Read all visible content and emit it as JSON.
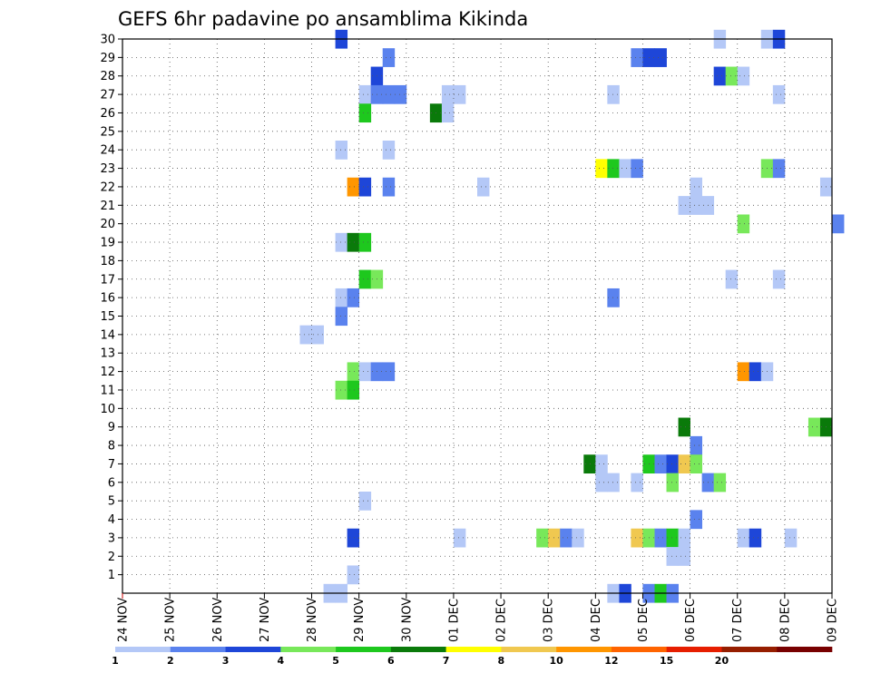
{
  "chart_data": {
    "type": "heatmap",
    "title": "GEFS 6hr padavine po ansamblima Kikinda",
    "y_ticks": [
      "1",
      "2",
      "3",
      "4",
      "5",
      "6",
      "7",
      "8",
      "9",
      "10",
      "11",
      "12",
      "13",
      "14",
      "15",
      "16",
      "17",
      "18",
      "19",
      "20",
      "21",
      "22",
      "23",
      "24",
      "25",
      "26",
      "27",
      "28",
      "29",
      "30"
    ],
    "y_range": [
      0,
      30
    ],
    "x_ticks": [
      "24 NOV",
      "25 NOV",
      "26 NOV",
      "27 NOV",
      "28 NOV",
      "29 NOV",
      "30 NOV",
      "01 DEC",
      "02 DEC",
      "03 DEC",
      "04 DEC",
      "05 DEC",
      "06 DEC",
      "07 DEC",
      "08 DEC",
      "09 DEC"
    ],
    "x_range_days": [
      0,
      15
    ],
    "steps_per_day": 4,
    "grid": true,
    "legend_levels": [
      "1",
      "2",
      "3",
      "4",
      "5",
      "6",
      "7",
      "8",
      "10",
      "12",
      "15",
      "20"
    ],
    "legend_colors": [
      "#b4c8f7",
      "#5a82ee",
      "#1e46d8",
      "#78e85a",
      "#1ec81e",
      "#0a7a0a",
      "#ffff00",
      "#f0c850",
      "#ff9600",
      "#ff6400",
      "#e61e00",
      "#961e00",
      "#780000"
    ],
    "cells": [
      {
        "m": 30,
        "t": 18,
        "c": 2
      },
      {
        "m": 30,
        "t": 50,
        "c": 0
      },
      {
        "m": 30,
        "t": 54,
        "c": 0
      },
      {
        "m": 30,
        "t": 55,
        "c": 2
      },
      {
        "m": 29,
        "t": 22,
        "c": 1
      },
      {
        "m": 29,
        "t": 43,
        "c": 1
      },
      {
        "m": 29,
        "t": 44,
        "c": 2
      },
      {
        "m": 29,
        "t": 45,
        "c": 2
      },
      {
        "m": 28,
        "t": 21,
        "c": 2
      },
      {
        "m": 28,
        "t": 50,
        "c": 2
      },
      {
        "m": 28,
        "t": 51,
        "c": 3
      },
      {
        "m": 28,
        "t": 52,
        "c": 0
      },
      {
        "m": 27,
        "t": 20,
        "c": 0
      },
      {
        "m": 27,
        "t": 21,
        "c": 1
      },
      {
        "m": 27,
        "t": 22,
        "c": 1
      },
      {
        "m": 27,
        "t": 23,
        "c": 1
      },
      {
        "m": 27,
        "t": 27,
        "c": 0
      },
      {
        "m": 27,
        "t": 28,
        "c": 0
      },
      {
        "m": 27,
        "t": 41,
        "c": 0
      },
      {
        "m": 27,
        "t": 55,
        "c": 0
      },
      {
        "m": 26,
        "t": 20,
        "c": 4
      },
      {
        "m": 26,
        "t": 26,
        "c": 5
      },
      {
        "m": 26,
        "t": 27,
        "c": 0
      },
      {
        "m": 24,
        "t": 18,
        "c": 0
      },
      {
        "m": 24,
        "t": 22,
        "c": 0
      },
      {
        "m": 23,
        "t": 40,
        "c": 6
      },
      {
        "m": 23,
        "t": 41,
        "c": 4
      },
      {
        "m": 23,
        "t": 42,
        "c": 0
      },
      {
        "m": 23,
        "t": 43,
        "c": 1
      },
      {
        "m": 23,
        "t": 54,
        "c": 3
      },
      {
        "m": 23,
        "t": 55,
        "c": 1
      },
      {
        "m": 22,
        "t": 19,
        "c": 8
      },
      {
        "m": 22,
        "t": 20,
        "c": 2
      },
      {
        "m": 22,
        "t": 22,
        "c": 1
      },
      {
        "m": 22,
        "t": 30,
        "c": 0
      },
      {
        "m": 22,
        "t": 48,
        "c": 0
      },
      {
        "m": 22,
        "t": 59,
        "c": 0
      },
      {
        "m": 21,
        "t": 47,
        "c": 0
      },
      {
        "m": 21,
        "t": 48,
        "c": 0
      },
      {
        "m": 21,
        "t": 49,
        "c": 0
      },
      {
        "m": 20,
        "t": 52,
        "c": 3
      },
      {
        "m": 20,
        "t": 60,
        "c": 1
      },
      {
        "m": 19,
        "t": 18,
        "c": 0
      },
      {
        "m": 19,
        "t": 19,
        "c": 5
      },
      {
        "m": 19,
        "t": 20,
        "c": 4
      },
      {
        "m": 17,
        "t": 20,
        "c": 4
      },
      {
        "m": 17,
        "t": 21,
        "c": 3
      },
      {
        "m": 17,
        "t": 51,
        "c": 0
      },
      {
        "m": 17,
        "t": 55,
        "c": 0
      },
      {
        "m": 16,
        "t": 18,
        "c": 0
      },
      {
        "m": 16,
        "t": 19,
        "c": 1
      },
      {
        "m": 16,
        "t": 41,
        "c": 1
      },
      {
        "m": 15,
        "t": 18,
        "c": 1
      },
      {
        "m": 14,
        "t": 15,
        "c": 0
      },
      {
        "m": 14,
        "t": 16,
        "c": 0
      },
      {
        "m": 12,
        "t": 19,
        "c": 3
      },
      {
        "m": 12,
        "t": 20,
        "c": 0
      },
      {
        "m": 12,
        "t": 21,
        "c": 1
      },
      {
        "m": 12,
        "t": 22,
        "c": 1
      },
      {
        "m": 12,
        "t": 52,
        "c": 8
      },
      {
        "m": 12,
        "t": 53,
        "c": 2
      },
      {
        "m": 12,
        "t": 54,
        "c": 0
      },
      {
        "m": 11,
        "t": 18,
        "c": 3
      },
      {
        "m": 11,
        "t": 19,
        "c": 4
      },
      {
        "m": 9,
        "t": 47,
        "c": 5
      },
      {
        "m": 9,
        "t": 58,
        "c": 3
      },
      {
        "m": 9,
        "t": 59,
        "c": 5
      },
      {
        "m": 8,
        "t": 48,
        "c": 1
      },
      {
        "m": 7,
        "t": 39,
        "c": 5
      },
      {
        "m": 7,
        "t": 40,
        "c": 0
      },
      {
        "m": 7,
        "t": 44,
        "c": 4
      },
      {
        "m": 7,
        "t": 45,
        "c": 1
      },
      {
        "m": 7,
        "t": 46,
        "c": 2
      },
      {
        "m": 7,
        "t": 47,
        "c": 7
      },
      {
        "m": 7,
        "t": 48,
        "c": 3
      },
      {
        "m": 6,
        "t": 40,
        "c": 0
      },
      {
        "m": 6,
        "t": 41,
        "c": 0
      },
      {
        "m": 6,
        "t": 43,
        "c": 0
      },
      {
        "m": 6,
        "t": 46,
        "c": 3
      },
      {
        "m": 6,
        "t": 49,
        "c": 1
      },
      {
        "m": 6,
        "t": 50,
        "c": 3
      },
      {
        "m": 5,
        "t": 20,
        "c": 0
      },
      {
        "m": 4,
        "t": 48,
        "c": 1
      },
      {
        "m": 3,
        "t": 19,
        "c": 2
      },
      {
        "m": 3,
        "t": 28,
        "c": 0
      },
      {
        "m": 3,
        "t": 35,
        "c": 3
      },
      {
        "m": 3,
        "t": 36,
        "c": 7
      },
      {
        "m": 3,
        "t": 37,
        "c": 1
      },
      {
        "m": 3,
        "t": 38,
        "c": 0
      },
      {
        "m": 3,
        "t": 43,
        "c": 7
      },
      {
        "m": 3,
        "t": 44,
        "c": 3
      },
      {
        "m": 3,
        "t": 45,
        "c": 1
      },
      {
        "m": 3,
        "t": 46,
        "c": 4
      },
      {
        "m": 3,
        "t": 47,
        "c": 0
      },
      {
        "m": 3,
        "t": 52,
        "c": 0
      },
      {
        "m": 3,
        "t": 53,
        "c": 2
      },
      {
        "m": 3,
        "t": 56,
        "c": 0
      },
      {
        "m": 2,
        "t": 46,
        "c": 0
      },
      {
        "m": 2,
        "t": 47,
        "c": 0
      },
      {
        "m": 1,
        "t": 19,
        "c": 0
      },
      {
        "m": 0,
        "t": 17,
        "c": 0
      },
      {
        "m": 0,
        "t": 18,
        "c": 0
      },
      {
        "m": 0,
        "t": 41,
        "c": 0
      },
      {
        "m": 0,
        "t": 42,
        "c": 2
      },
      {
        "m": 0,
        "t": 44,
        "c": 1
      },
      {
        "m": 0,
        "t": 45,
        "c": 4
      },
      {
        "m": 0,
        "t": 46,
        "c": 1
      }
    ]
  }
}
